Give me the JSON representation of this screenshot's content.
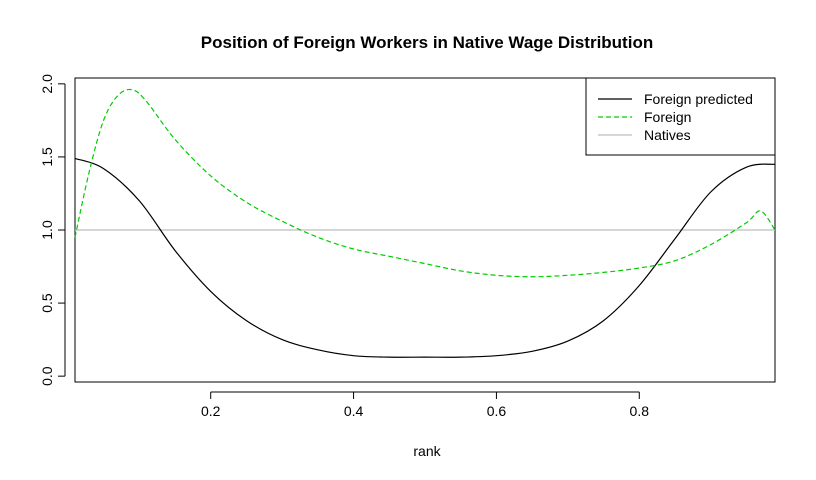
{
  "chart_data": {
    "type": "line",
    "title": "Position of Foreign Workers in Native Wage Distribution",
    "xlabel": "rank",
    "ylabel": "",
    "xlim": [
      0.01,
      0.99
    ],
    "ylim": [
      -0.04,
      2.04
    ],
    "x_ticks": [
      0.2,
      0.4,
      0.6,
      0.8
    ],
    "y_ticks": [
      0.0,
      0.5,
      1.0,
      1.5,
      2.0
    ],
    "x_tick_labels": [
      "0.2",
      "0.4",
      "0.6",
      "0.8"
    ],
    "y_tick_labels": [
      "0.0",
      "0.5",
      "1.0",
      "1.5",
      "2.0"
    ],
    "grid": false,
    "legend_position": "top-right",
    "series": [
      {
        "name": "Foreign predicted",
        "color": "#000000",
        "style": "solid",
        "x": [
          0.01,
          0.05,
          0.1,
          0.15,
          0.2,
          0.25,
          0.3,
          0.35,
          0.4,
          0.45,
          0.5,
          0.55,
          0.6,
          0.65,
          0.7,
          0.75,
          0.8,
          0.85,
          0.9,
          0.95,
          0.99
        ],
        "y": [
          1.49,
          1.42,
          1.2,
          0.86,
          0.58,
          0.38,
          0.25,
          0.18,
          0.14,
          0.13,
          0.13,
          0.13,
          0.14,
          0.17,
          0.24,
          0.38,
          0.62,
          0.94,
          1.26,
          1.43,
          1.45
        ]
      },
      {
        "name": "Foreign",
        "color": "#00cc00",
        "style": "dashed",
        "x": [
          0.01,
          0.03,
          0.05,
          0.07,
          0.09,
          0.11,
          0.15,
          0.2,
          0.25,
          0.3,
          0.35,
          0.4,
          0.45,
          0.5,
          0.55,
          0.6,
          0.65,
          0.7,
          0.75,
          0.8,
          0.85,
          0.9,
          0.95,
          0.97,
          0.99
        ],
        "y": [
          0.95,
          1.4,
          1.75,
          1.92,
          1.96,
          1.88,
          1.62,
          1.37,
          1.19,
          1.06,
          0.95,
          0.87,
          0.82,
          0.77,
          0.72,
          0.69,
          0.68,
          0.69,
          0.71,
          0.74,
          0.79,
          0.9,
          1.05,
          1.13,
          1.0
        ]
      },
      {
        "name": "Natives",
        "color": "#bebebe",
        "style": "solid",
        "x": [
          0.01,
          0.99
        ],
        "y": [
          1.0,
          1.0
        ]
      }
    ]
  }
}
